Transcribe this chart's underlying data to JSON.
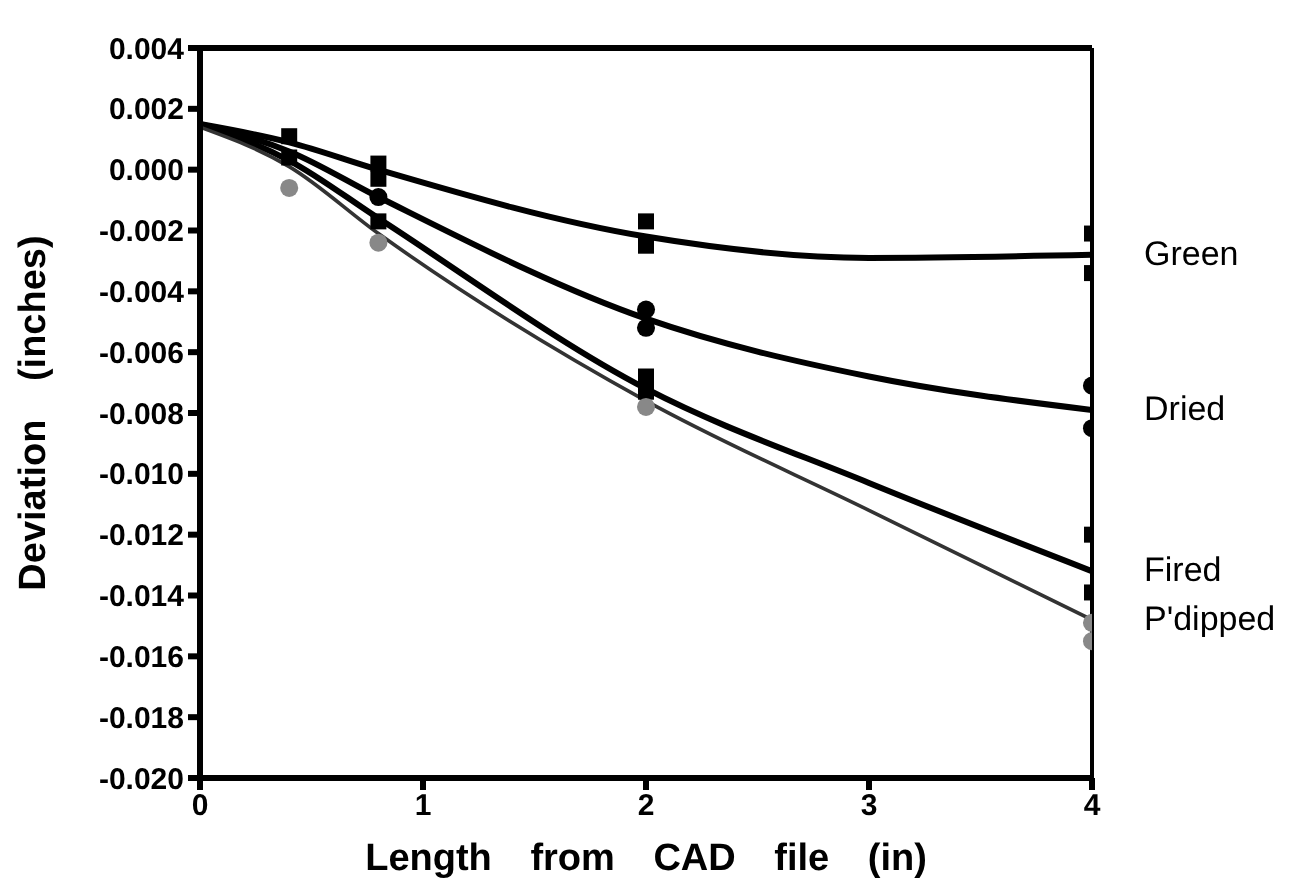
{
  "chart_data": {
    "type": "line",
    "xlabel": "Length from CAD file (in)",
    "ylabel": "Deviation (inches)",
    "xlim": [
      0,
      4
    ],
    "xticks": [
      0,
      1,
      2,
      3,
      4
    ],
    "ylim": [
      -0.02,
      0.004
    ],
    "yticks": [
      {
        "value": -0.02,
        "label": "-0.020"
      },
      {
        "value": -0.018,
        "label": "-0.018"
      },
      {
        "value": -0.016,
        "label": "-0.016"
      },
      {
        "value": -0.014,
        "label": "-0.014"
      },
      {
        "value": -0.012,
        "label": "-0.012"
      },
      {
        "value": -0.01,
        "label": "-0.010"
      },
      {
        "value": -0.008,
        "label": "-0.008"
      },
      {
        "value": -0.006,
        "label": "-0.006"
      },
      {
        "value": -0.004,
        "label": "-0.004"
      },
      {
        "value": -0.002,
        "label": "-0.002"
      },
      {
        "value": 0,
        "label": "0.000"
      },
      {
        "value": 0.002,
        "label": "0.002"
      },
      {
        "value": 0.004,
        "label": "0.004"
      }
    ],
    "grid": false,
    "legend": false,
    "series": [
      {
        "name": "Green",
        "color": "#000000",
        "marker": "none",
        "line_style": "solid",
        "x": [
          0,
          0.4,
          0.8,
          2,
          3,
          4
        ],
        "values": [
          0.0015,
          0.0009,
          0.0,
          -0.0022,
          -0.0029,
          -0.0028
        ]
      },
      {
        "name": "Dried",
        "color": "#000000",
        "marker": "none",
        "line_style": "solid",
        "x": [
          0,
          0.4,
          0.8,
          2,
          3,
          4
        ],
        "values": [
          0.0015,
          0.0006,
          -0.0009,
          -0.0049,
          -0.0068,
          -0.0079
        ]
      },
      {
        "name": "Fired",
        "color": "#000000",
        "marker": "none",
        "line_style": "solid",
        "x": [
          0,
          0.4,
          0.8,
          2,
          3,
          4
        ],
        "values": [
          0.0015,
          0.0003,
          -0.0016,
          -0.0072,
          -0.0103,
          -0.0132
        ]
      },
      {
        "name": "P'dipped",
        "color": "#333333",
        "marker": "none",
        "line_style": "solid",
        "x": [
          0,
          0.4,
          0.8,
          2,
          3,
          4
        ],
        "values": [
          0.0014,
          0.0001,
          -0.0021,
          -0.0076,
          -0.0112,
          -0.0148
        ]
      },
      {
        "type": "scatter",
        "color": "#000000",
        "marker": "square",
        "x": [
          0.4,
          0.8,
          0.8,
          2,
          2,
          4,
          4
        ],
        "values": [
          0.0011,
          0.0002,
          -0.0003,
          -0.0017,
          -0.0025,
          -0.0021,
          -0.0034
        ]
      },
      {
        "type": "scatter",
        "color": "#000000",
        "marker": "circle",
        "x": [
          0.8,
          2,
          2,
          4,
          4
        ],
        "values": [
          -0.0009,
          -0.0046,
          -0.0052,
          -0.0071,
          -0.0085
        ]
      },
      {
        "type": "scatter",
        "color": "#000000",
        "marker": "square",
        "x": [
          0.4,
          0.8,
          2,
          2,
          4,
          4
        ],
        "values": [
          0.0004,
          -0.0017,
          -0.0068,
          -0.0073,
          -0.012,
          -0.0139
        ]
      },
      {
        "type": "scatter",
        "color": "#888888",
        "marker": "circle",
        "x": [
          0.4,
          0.8,
          2,
          4,
          4
        ],
        "values": [
          -0.0006,
          -0.0024,
          -0.0078,
          -0.0149,
          -0.0155
        ]
      }
    ]
  }
}
